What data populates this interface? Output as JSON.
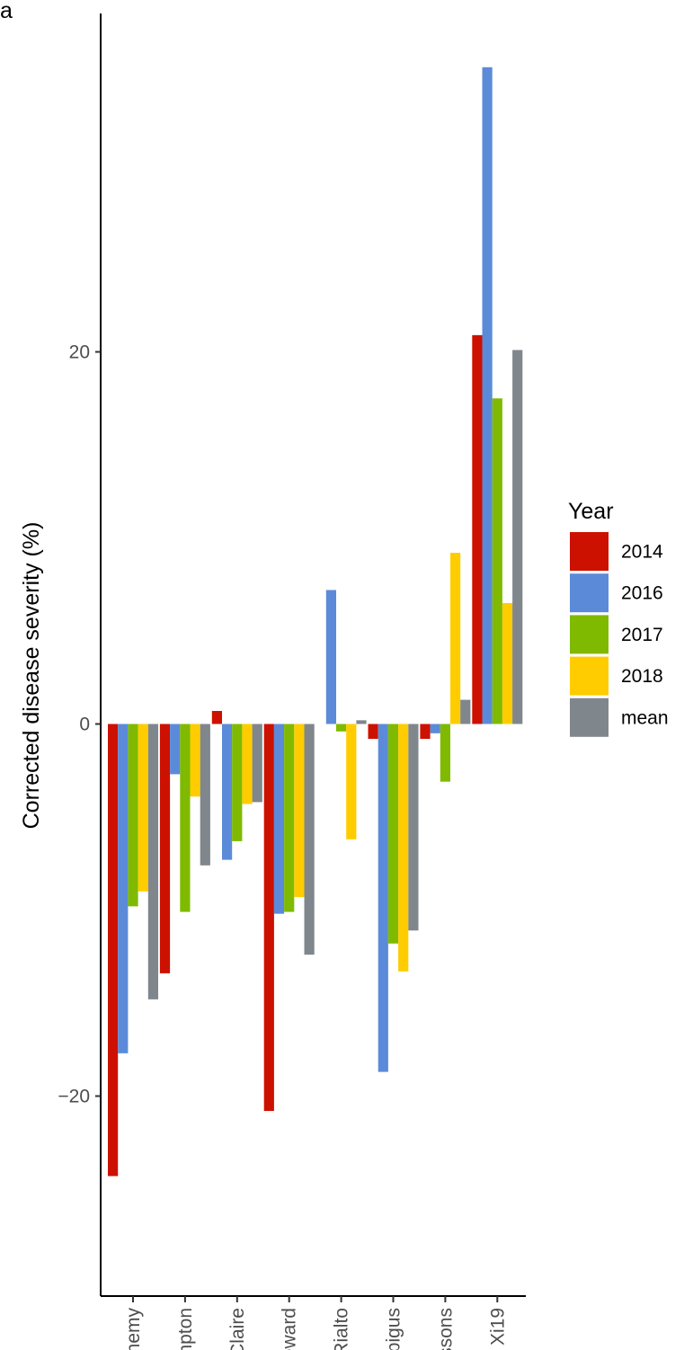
{
  "panel_tag": "a",
  "chart_data": {
    "type": "bar",
    "categories": [
      "Alchemy",
      "Brompton",
      "Claire",
      "Hereward",
      "Rialto",
      "Robigus",
      "Soissons",
      "Xi19"
    ],
    "series": [
      {
        "name": "2014",
        "color": "#cc1100",
        "values": [
          -24.3,
          -13.4,
          0.7,
          -20.8,
          null,
          -0.8,
          -0.8,
          20.9
        ]
      },
      {
        "name": "2016",
        "color": "#5b8bd8",
        "values": [
          -17.7,
          -2.7,
          -7.3,
          -10.2,
          7.2,
          -18.7,
          -0.5,
          35.3
        ]
      },
      {
        "name": "2017",
        "color": "#7fba00",
        "values": [
          -9.8,
          -10.1,
          -6.3,
          -10.1,
          -0.4,
          -11.8,
          -3.1,
          17.5
        ]
      },
      {
        "name": "2018",
        "color": "#ffcc00",
        "values": [
          -9.0,
          -3.9,
          -4.3,
          -9.3,
          -6.2,
          -13.3,
          9.2,
          6.5
        ]
      },
      {
        "name": "mean",
        "color": "#7f878c",
        "values": [
          -14.8,
          -7.6,
          -4.2,
          -12.4,
          0.2,
          -11.1,
          1.3,
          20.1
        ]
      }
    ],
    "ylabel": "Corrected disease severity (%)",
    "xlabel": "",
    "yticks": [
      -20,
      0,
      20
    ],
    "ytick_labels": [
      "−20",
      "0",
      "20"
    ],
    "ylim": [
      -26.8,
      38.5
    ],
    "legend_title": "Year",
    "legend_position": "right",
    "grid": false
  }
}
